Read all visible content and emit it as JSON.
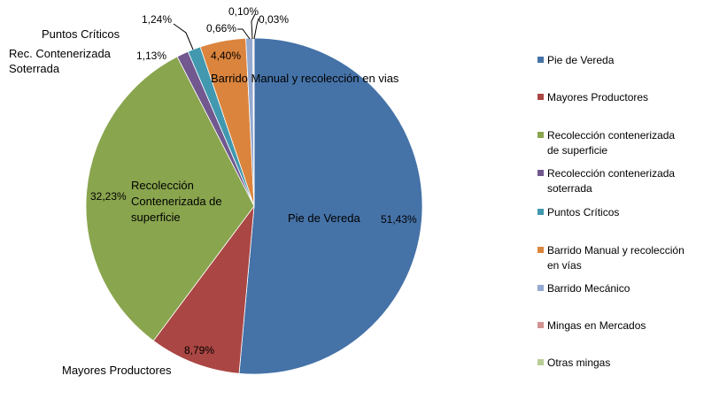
{
  "chart_data": {
    "type": "pie",
    "categories": [
      "Pie de Vereda",
      "Mayores Productores",
      "Recolección contenerizada de superficie",
      "Recolección  contenerizada soterrada",
      "Puntos Críticos",
      "Barrido Manual y recolección en vías",
      "Barrido Mecánico",
      "Mingas en Mercados",
      "Otras mingas"
    ],
    "values": [
      51.43,
      8.79,
      32.23,
      1.13,
      1.24,
      4.4,
      0.66,
      0.1,
      0.03
    ],
    "value_labels": [
      "51,43%",
      "8,79%",
      "32,23%",
      "1,13%",
      "1,24%",
      "4,40%",
      "0,66%",
      "0,10%",
      "0,03%"
    ],
    "colors": [
      "#4572A7",
      "#AA4643",
      "#89A54E",
      "#71588F",
      "#4198AF",
      "#DB843D",
      "#93A9CF",
      "#D19392",
      "#B9CD96"
    ],
    "slice_labels": {
      "pie_de_vereda": "Pie de Vereda",
      "mayores_productores": "Mayores Productores",
      "recoleccion_superficie_lines": [
        "Recolección",
        "Contenerizada de",
        "superficie"
      ],
      "rec_soterrada_lines": [
        "Rec. Contenerizada",
        "Soterrada"
      ],
      "puntos_criticos": "Puntos Críticos",
      "barrido_manual": "Barrido Manual y recolección en vias"
    },
    "legend": {
      "position": "right",
      "entries": [
        [
          "Pie de Vereda"
        ],
        [
          "Mayores Productores"
        ],
        [
          "Recolección contenerizada",
          "de superficie"
        ],
        [
          "Recolección  contenerizada",
          "soterrada"
        ],
        [
          "Puntos Críticos"
        ],
        [
          "Barrido Manual y recolección",
          "en vías"
        ],
        [
          "Barrido Mecánico"
        ],
        [
          "Mingas en Mercados"
        ],
        [
          "Otras mingas"
        ]
      ]
    }
  }
}
